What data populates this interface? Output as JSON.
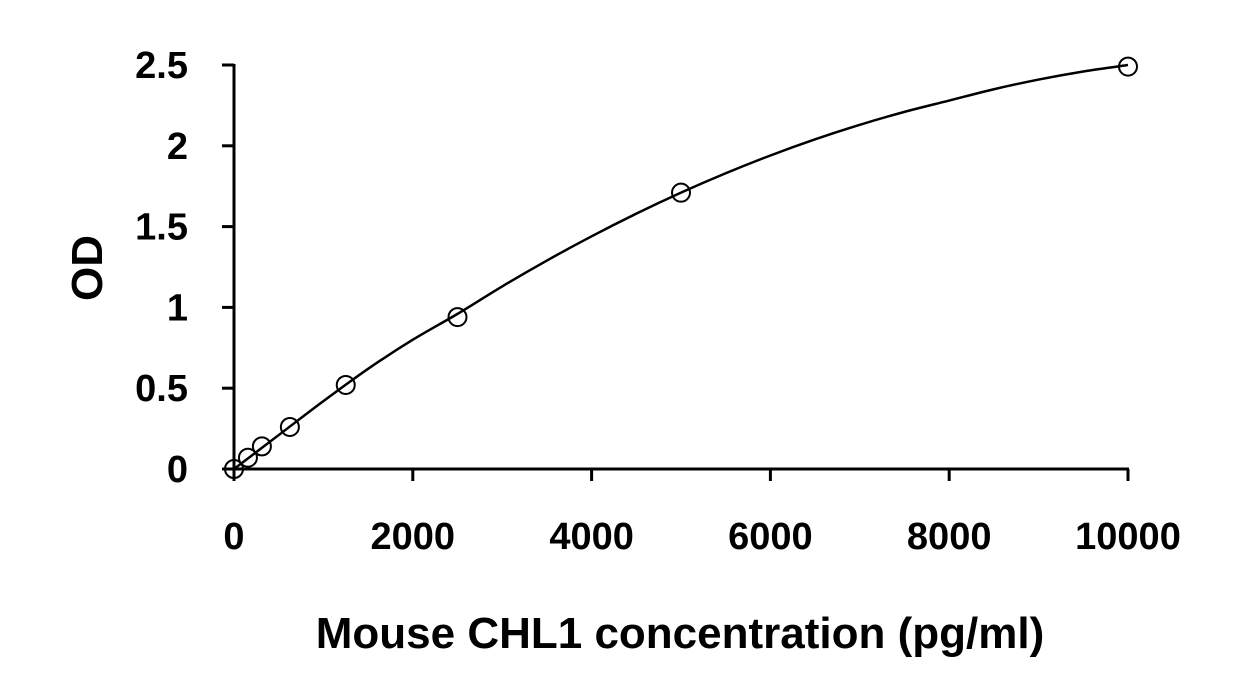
{
  "chart_data": {
    "type": "scatter",
    "xlabel": "Mouse CHL1 concentration (pg/ml)",
    "ylabel": "OD",
    "xlim": [
      0,
      10000
    ],
    "ylim": [
      0,
      2.5
    ],
    "x_ticks": [
      0,
      2000,
      4000,
      6000,
      8000,
      10000
    ],
    "y_ticks": [
      0,
      0.5,
      1,
      1.5,
      2,
      2.5
    ],
    "y_tick_labels": [
      "0",
      "0.5",
      "1",
      "1.5",
      "2",
      "2.5"
    ],
    "grid": false,
    "points": {
      "x": [
        0,
        156,
        312,
        625,
        1250,
        2500,
        5000,
        10000
      ],
      "y": [
        0.0,
        0.07,
        0.14,
        0.26,
        0.52,
        0.94,
        1.71,
        2.49
      ]
    },
    "fit_curve": {
      "x": [
        0,
        500,
        1000,
        1500,
        2000,
        2500,
        3000,
        3500,
        4000,
        4500,
        5000,
        5500,
        6000,
        6500,
        7000,
        7500,
        8000,
        8500,
        9000,
        9500,
        10000
      ],
      "y": [
        0.0,
        0.21,
        0.42,
        0.62,
        0.8,
        0.96,
        1.13,
        1.29,
        1.44,
        1.58,
        1.71,
        1.83,
        1.94,
        2.04,
        2.13,
        2.21,
        2.28,
        2.35,
        2.41,
        2.46,
        2.5
      ]
    }
  }
}
